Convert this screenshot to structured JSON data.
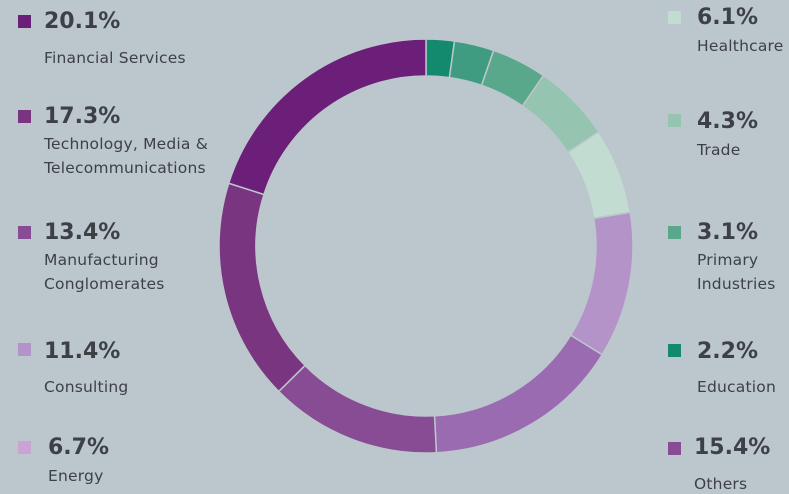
{
  "chart_data": {
    "type": "pie",
    "donut": true,
    "title": "",
    "legend_placement": "both-sides",
    "slices": [
      {
        "label": "Education",
        "value": 2.2,
        "color": "#138a6e"
      },
      {
        "label": "Primary Industries",
        "value": 3.1,
        "color": "#3f9c80"
      },
      {
        "label": "Trade",
        "value": 4.3,
        "color": "#5aa88c"
      },
      {
        "label": "Healthcare",
        "value": 6.1,
        "color": "#95c4b0"
      },
      {
        "label": "Energy",
        "value": 6.7,
        "color": "#c2dcd2"
      },
      {
        "label": "Consulting",
        "value": 11.4,
        "color": "#b493c9"
      },
      {
        "label": "Others",
        "value": 15.4,
        "color": "#9a6bb0"
      },
      {
        "label": "Manufacturing Conglomerates",
        "value": 13.4,
        "color": "#874c94"
      },
      {
        "label": "Technology, Media & Telecommunications",
        "value": 17.3,
        "color": "#7a3580"
      },
      {
        "label": "Financial Services",
        "value": 20.1,
        "color": "#6b1f78"
      }
    ]
  },
  "legend": {
    "left": [
      {
        "pct": "20.1%",
        "lines": [
          "Financial Services"
        ],
        "color": "#6b1f78"
      },
      {
        "pct": "17.3%",
        "lines": [
          "Technology, Media &",
          "Telecommunications"
        ],
        "color": "#7a3580"
      },
      {
        "pct": "13.4%",
        "lines": [
          "Manufacturing",
          "Conglomerates"
        ],
        "color": "#874c94"
      },
      {
        "pct": "11.4%",
        "lines": [
          "Consulting"
        ],
        "color": "#b493c9"
      },
      {
        "pct": "6.7%",
        "lines": [
          "Energy"
        ],
        "color": "#c9a3d4"
      }
    ],
    "right": [
      {
        "pct": "6.1%",
        "lines": [
          "Healthcare"
        ],
        "color": "#c2dcd2"
      },
      {
        "pct": "4.3%",
        "lines": [
          "Trade"
        ],
        "color": "#95c4b0"
      },
      {
        "pct": "3.1%",
        "lines": [
          "Primary",
          "Industries"
        ],
        "color": "#5aa88c"
      },
      {
        "pct": "2.2%",
        "lines": [
          "Education"
        ],
        "color": "#138a6e"
      },
      {
        "pct": "15.4%",
        "lines": [
          "Others"
        ],
        "color": "#874c94"
      }
    ]
  }
}
